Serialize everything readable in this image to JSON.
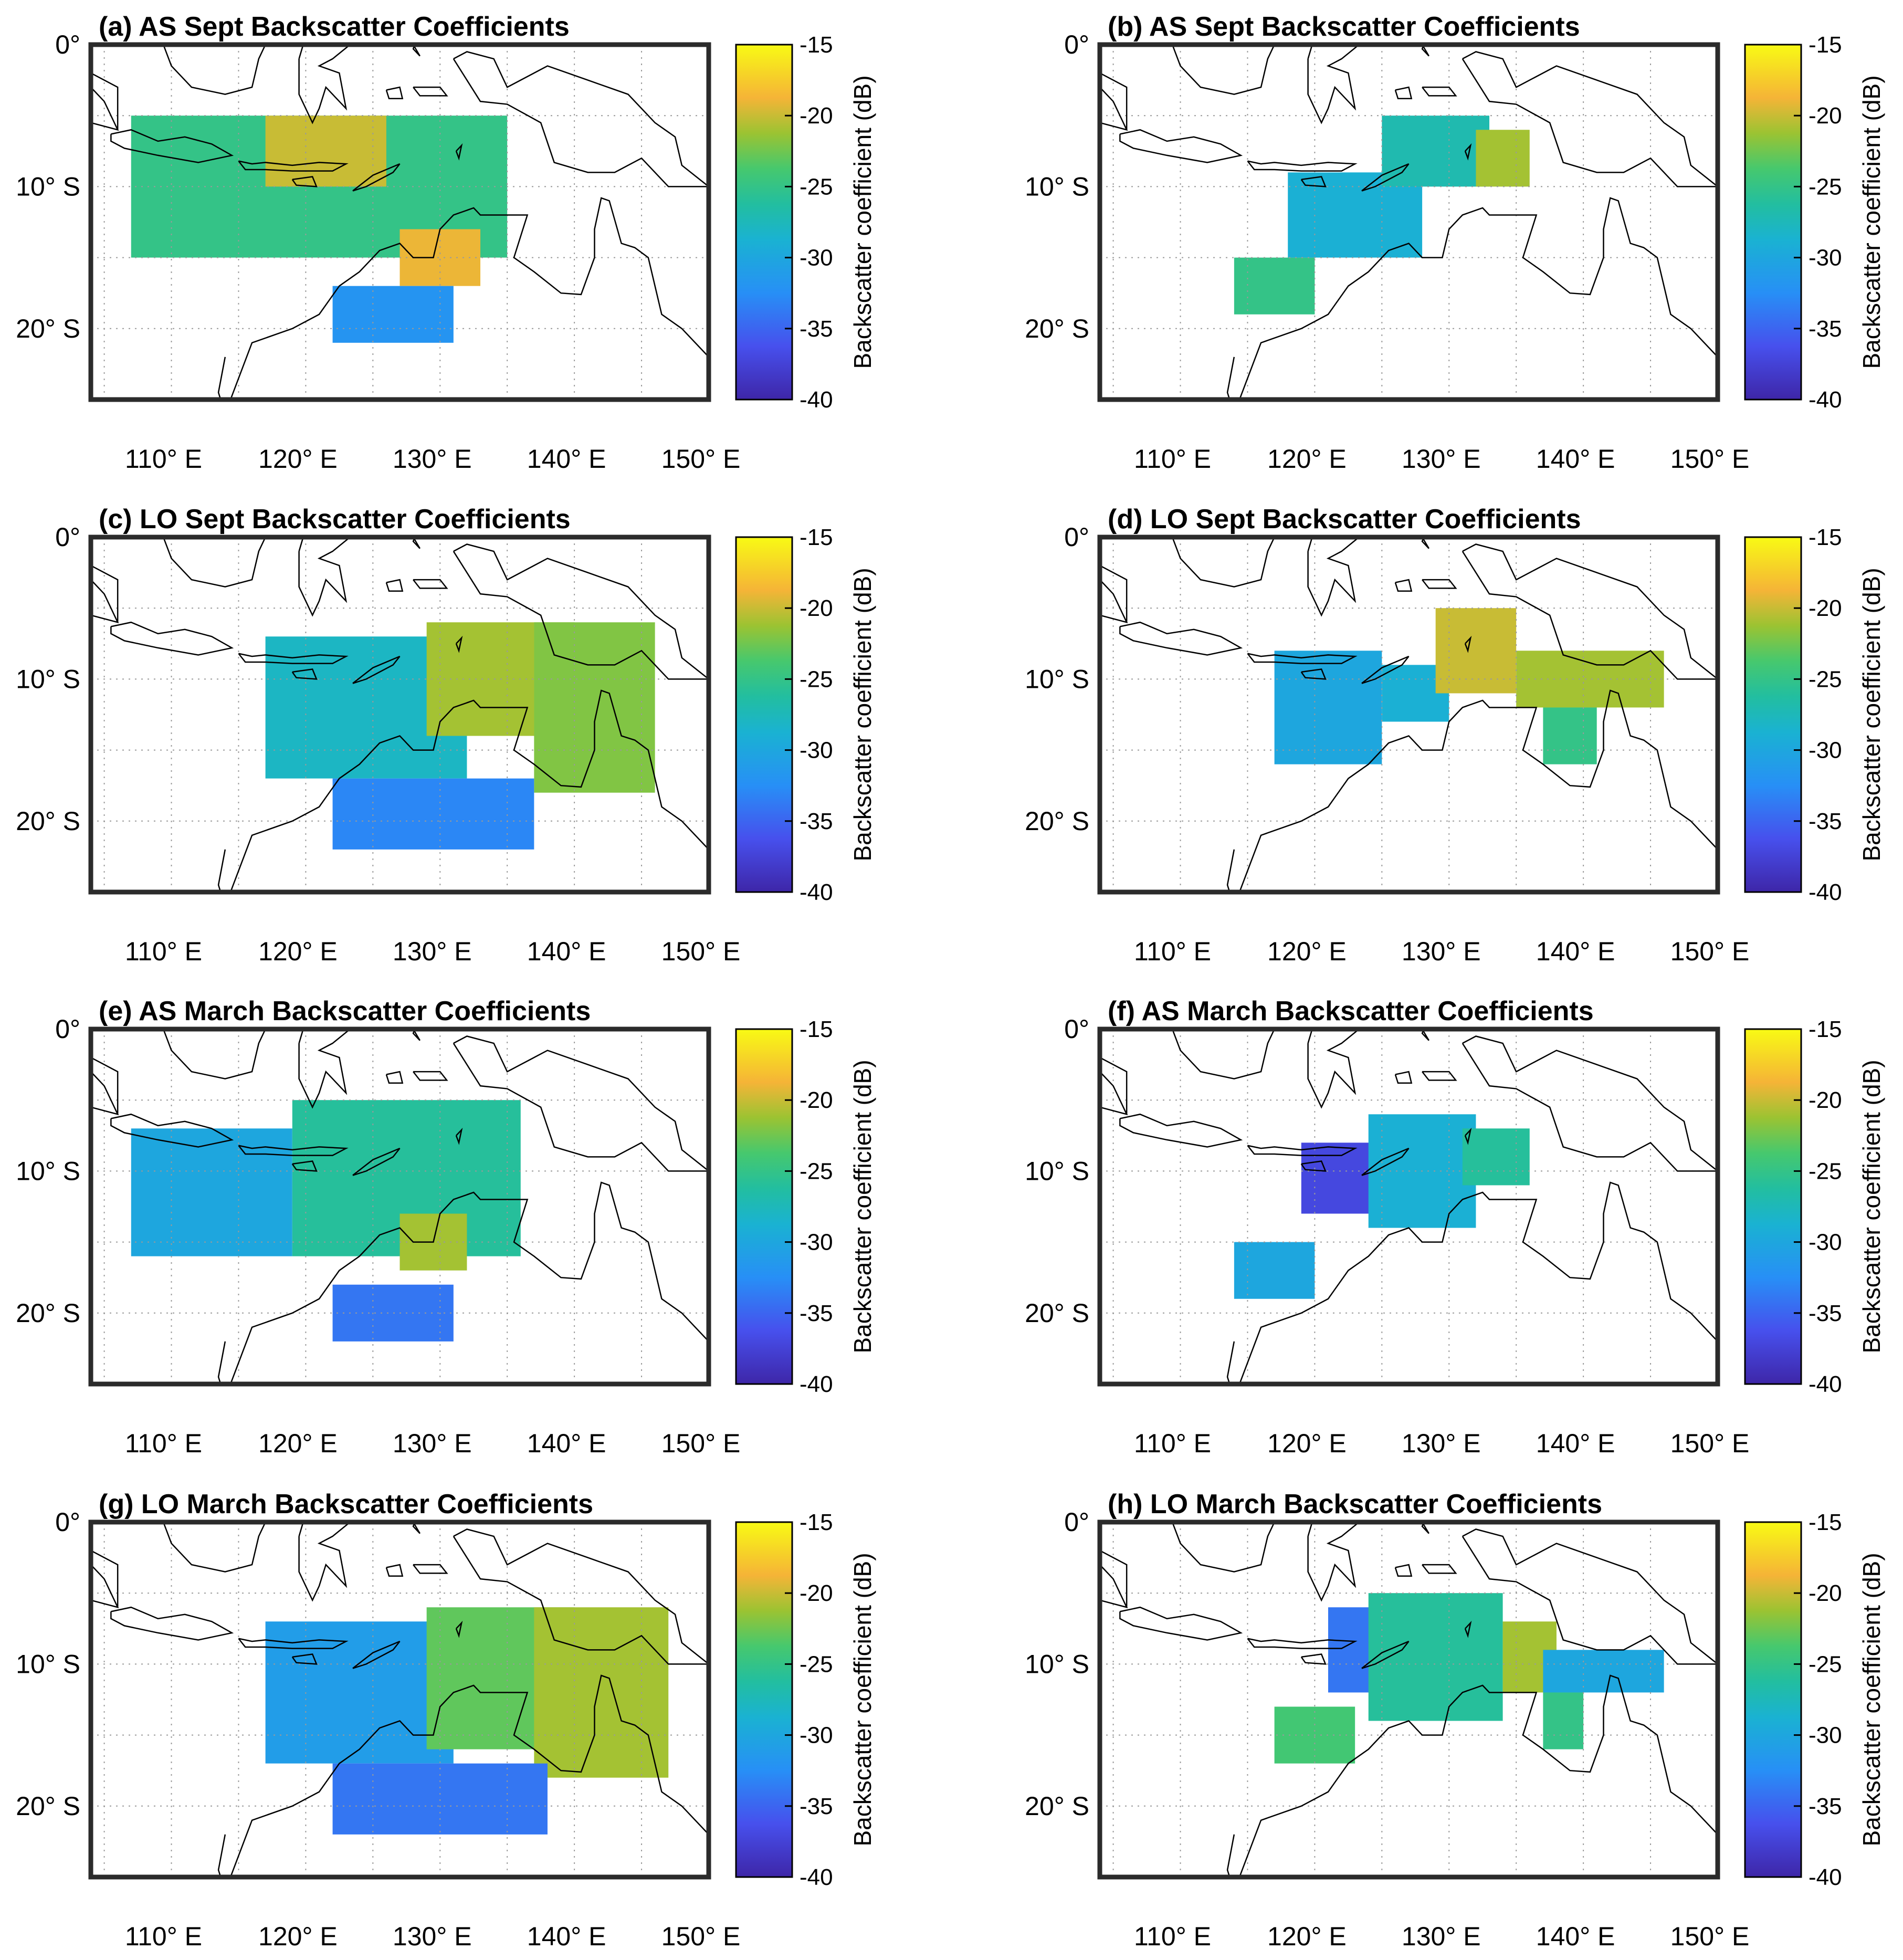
{
  "figure": {
    "caption_layout": "4 rows x 2 columns of map panels"
  },
  "chart_data": [
    {
      "type": "heatmap",
      "panel": "a",
      "title": "(a) AS Sept Backscatter Coefficients",
      "region": "Indonesia / northern Australia",
      "xlim": [
        104,
        150
      ],
      "ylim": [
        -25,
        0
      ],
      "x_tick_labels": [
        "110° E",
        "120° E",
        "130° E",
        "140° E",
        "150° E"
      ],
      "y_tick_labels": [
        "0°",
        "10° S",
        "20° S"
      ],
      "colorbar": {
        "label": "Backscatter coefficient (dB)",
        "range": [
          -40,
          -15
        ],
        "ticks": [
          "-15",
          "-20",
          "-25",
          "-30",
          "-35",
          "-40"
        ],
        "colormap": "parula"
      },
      "coverage_blocks": [
        {
          "lon": [
            107,
            135
          ],
          "lat": [
            -15,
            -5
          ],
          "value_db": -25
        },
        {
          "lon": [
            117,
            126
          ],
          "lat": [
            -10,
            -5
          ],
          "value_db": -20
        },
        {
          "lon": [
            127,
            133
          ],
          "lat": [
            -17,
            -13
          ],
          "value_db": -19
        },
        {
          "lon": [
            122,
            131
          ],
          "lat": [
            -21,
            -17
          ],
          "value_db": -32
        }
      ]
    },
    {
      "type": "heatmap",
      "panel": "b",
      "title": "(b) AS Sept Backscatter Coefficients",
      "region": "Indonesia / northern Australia",
      "xlim": [
        104,
        150
      ],
      "ylim": [
        -25,
        0
      ],
      "x_tick_labels": [
        "110° E",
        "120° E",
        "130° E",
        "140° E",
        "150° E"
      ],
      "y_tick_labels": [
        "0°",
        "10° S",
        "20° S"
      ],
      "colorbar": {
        "label": "Backscatter coefficient (dB)",
        "range": [
          -40,
          -15
        ],
        "ticks": [
          "-15",
          "-20",
          "-25",
          "-30",
          "-35",
          "-40"
        ],
        "colormap": "parula"
      },
      "coverage_blocks": [
        {
          "lon": [
            114,
            120
          ],
          "lat": [
            -19,
            -15
          ],
          "value_db": -25
        },
        {
          "lon": [
            118,
            128
          ],
          "lat": [
            -15,
            -9
          ],
          "value_db": -29
        },
        {
          "lon": [
            125,
            133
          ],
          "lat": [
            -10,
            -5
          ],
          "value_db": -27
        },
        {
          "lon": [
            132,
            136
          ],
          "lat": [
            -10,
            -6
          ],
          "value_db": -21
        }
      ]
    },
    {
      "type": "heatmap",
      "panel": "c",
      "title": "(c) LO Sept Backscatter Coefficients",
      "region": "Indonesia / northern Australia",
      "xlim": [
        104,
        150
      ],
      "ylim": [
        -25,
        0
      ],
      "x_tick_labels": [
        "110° E",
        "120° E",
        "130° E",
        "140° E",
        "150° E"
      ],
      "y_tick_labels": [
        "0°",
        "10° S",
        "20° S"
      ],
      "colorbar": {
        "label": "Backscatter coefficient (dB)",
        "range": [
          -40,
          -15
        ],
        "ticks": [
          "-15",
          "-20",
          "-25",
          "-30",
          "-35",
          "-40"
        ],
        "colormap": "parula"
      },
      "coverage_blocks": [
        {
          "lon": [
            117,
            132
          ],
          "lat": [
            -17,
            -7
          ],
          "value_db": -28
        },
        {
          "lon": [
            129,
            140
          ],
          "lat": [
            -14,
            -6
          ],
          "value_db": -21
        },
        {
          "lon": [
            137,
            146
          ],
          "lat": [
            -18,
            -6
          ],
          "value_db": -22
        },
        {
          "lon": [
            122,
            137
          ],
          "lat": [
            -22,
            -17
          ],
          "value_db": -33
        }
      ]
    },
    {
      "type": "heatmap",
      "panel": "d",
      "title": "(d) LO Sept Backscatter Coefficients",
      "region": "Indonesia / northern Australia",
      "xlim": [
        104,
        150
      ],
      "ylim": [
        -25,
        0
      ],
      "x_tick_labels": [
        "110° E",
        "120° E",
        "130° E",
        "140° E",
        "150° E"
      ],
      "y_tick_labels": [
        "0°",
        "10° S",
        "20° S"
      ],
      "colorbar": {
        "label": "Backscatter coefficient (dB)",
        "range": [
          -40,
          -15
        ],
        "ticks": [
          "-15",
          "-20",
          "-25",
          "-30",
          "-35",
          "-40"
        ],
        "colormap": "parula"
      },
      "coverage_blocks": [
        {
          "lon": [
            117,
            125
          ],
          "lat": [
            -16,
            -8
          ],
          "value_db": -30
        },
        {
          "lon": [
            125,
            130
          ],
          "lat": [
            -13,
            -9
          ],
          "value_db": -29
        },
        {
          "lon": [
            129,
            135
          ],
          "lat": [
            -11,
            -5
          ],
          "value_db": -20
        },
        {
          "lon": [
            135,
            146
          ],
          "lat": [
            -12,
            -8
          ],
          "value_db": -21
        },
        {
          "lon": [
            137,
            141
          ],
          "lat": [
            -16,
            -12
          ],
          "value_db": -25
        }
      ]
    },
    {
      "type": "heatmap",
      "panel": "e",
      "title": "(e) AS March Backscatter Coefficients",
      "region": "Indonesia / northern Australia",
      "xlim": [
        104,
        150
      ],
      "ylim": [
        -25,
        0
      ],
      "x_tick_labels": [
        "110° E",
        "120° E",
        "130° E",
        "140° E",
        "150° E"
      ],
      "y_tick_labels": [
        "0°",
        "10° S",
        "20° S"
      ],
      "colorbar": {
        "label": "Backscatter coefficient (dB)",
        "range": [
          -40,
          -15
        ],
        "ticks": [
          "-15",
          "-20",
          "-25",
          "-30",
          "-35",
          "-40"
        ],
        "colormap": "parula"
      },
      "coverage_blocks": [
        {
          "lon": [
            107,
            119
          ],
          "lat": [
            -16,
            -7
          ],
          "value_db": -30
        },
        {
          "lon": [
            119,
            136
          ],
          "lat": [
            -16,
            -5
          ],
          "value_db": -26
        },
        {
          "lon": [
            127,
            132
          ],
          "lat": [
            -17,
            -13
          ],
          "value_db": -21
        },
        {
          "lon": [
            122,
            131
          ],
          "lat": [
            -22,
            -18
          ],
          "value_db": -34
        }
      ]
    },
    {
      "type": "heatmap",
      "panel": "f",
      "title": "(f) AS March Backscatter Coefficients",
      "region": "Indonesia / northern Australia",
      "xlim": [
        104,
        150
      ],
      "ylim": [
        -25,
        0
      ],
      "x_tick_labels": [
        "110° E",
        "120° E",
        "130° E",
        "140° E",
        "150° E"
      ],
      "y_tick_labels": [
        "0°",
        "10° S",
        "20° S"
      ],
      "colorbar": {
        "label": "Backscatter coefficient (dB)",
        "range": [
          -40,
          -15
        ],
        "ticks": [
          "-15",
          "-20",
          "-25",
          "-30",
          "-35",
          "-40"
        ],
        "colormap": "parula"
      },
      "coverage_blocks": [
        {
          "lon": [
            114,
            120
          ],
          "lat": [
            -19,
            -15
          ],
          "value_db": -30
        },
        {
          "lon": [
            119,
            126
          ],
          "lat": [
            -13,
            -8
          ],
          "value_db": -37
        },
        {
          "lon": [
            124,
            132
          ],
          "lat": [
            -14,
            -6
          ],
          "value_db": -29
        },
        {
          "lon": [
            131,
            136
          ],
          "lat": [
            -11,
            -7
          ],
          "value_db": -26
        }
      ]
    },
    {
      "type": "heatmap",
      "panel": "g",
      "title": "(g) LO March Backscatter Coefficients",
      "region": "Indonesia / northern Australia",
      "xlim": [
        104,
        150
      ],
      "ylim": [
        -25,
        0
      ],
      "x_tick_labels": [
        "110° E",
        "120° E",
        "130° E",
        "140° E",
        "150° E"
      ],
      "y_tick_labels": [
        "0°",
        "10° S",
        "20° S"
      ],
      "colorbar": {
        "label": "Backscatter coefficient (dB)",
        "range": [
          -40,
          -15
        ],
        "ticks": [
          "-15",
          "-20",
          "-25",
          "-30",
          "-35",
          "-40"
        ],
        "colormap": "parula"
      },
      "coverage_blocks": [
        {
          "lon": [
            117,
            131
          ],
          "lat": [
            -17,
            -7
          ],
          "value_db": -31
        },
        {
          "lon": [
            129,
            140
          ],
          "lat": [
            -16,
            -6
          ],
          "value_db": -23
        },
        {
          "lon": [
            137,
            147
          ],
          "lat": [
            -18,
            -6
          ],
          "value_db": -21
        },
        {
          "lon": [
            122,
            138
          ],
          "lat": [
            -22,
            -17
          ],
          "value_db": -34
        }
      ]
    },
    {
      "type": "heatmap",
      "panel": "h",
      "title": "(h) LO March Backscatter Coefficients",
      "region": "Indonesia / northern Australia",
      "xlim": [
        104,
        150
      ],
      "ylim": [
        -25,
        0
      ],
      "x_tick_labels": [
        "110° E",
        "120° E",
        "130° E",
        "140° E",
        "150° E"
      ],
      "y_tick_labels": [
        "0°",
        "10° S",
        "20° S"
      ],
      "colorbar": {
        "label": "Backscatter coefficient (dB)",
        "range": [
          -40,
          -15
        ],
        "ticks": [
          "-15",
          "-20",
          "-25",
          "-30",
          "-35",
          "-40"
        ],
        "colormap": "parula"
      },
      "coverage_blocks": [
        {
          "lon": [
            121,
            125
          ],
          "lat": [
            -12,
            -6
          ],
          "value_db": -34
        },
        {
          "lon": [
            117,
            123
          ],
          "lat": [
            -17,
            -13
          ],
          "value_db": -24
        },
        {
          "lon": [
            124,
            134
          ],
          "lat": [
            -14,
            -5
          ],
          "value_db": -26
        },
        {
          "lon": [
            134,
            138
          ],
          "lat": [
            -12,
            -7
          ],
          "value_db": -21
        },
        {
          "lon": [
            137,
            146
          ],
          "lat": [
            -12,
            -9
          ],
          "value_db": -30
        },
        {
          "lon": [
            137,
            140
          ],
          "lat": [
            -16,
            -12
          ],
          "value_db": -25
        }
      ]
    }
  ]
}
